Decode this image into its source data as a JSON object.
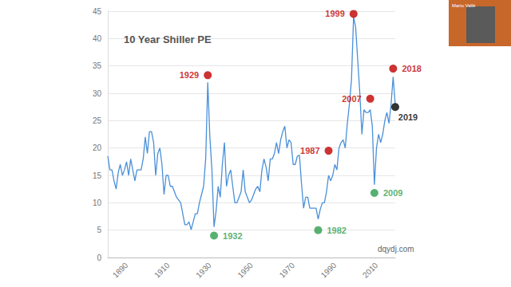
{
  "chart_data": {
    "type": "line",
    "title": "10 Year Shiller PE",
    "source": "dqydj.com",
    "color": "#4a90d9",
    "xlim": [
      1881,
      2019
    ],
    "xticks": [
      1890,
      1910,
      1930,
      1950,
      1970,
      1990,
      2010
    ],
    "ylim": [
      0,
      45
    ],
    "yticks": [
      0,
      5,
      10,
      15,
      20,
      25,
      30,
      35,
      40,
      45
    ],
    "grid": true,
    "x": [
      1881,
      1882,
      1883,
      1884,
      1885,
      1886,
      1887,
      1888,
      1889,
      1890,
      1891,
      1892,
      1893,
      1894,
      1895,
      1896,
      1897,
      1898,
      1899,
      1900,
      1901,
      1902,
      1903,
      1904,
      1905,
      1906,
      1907,
      1908,
      1909,
      1910,
      1911,
      1912,
      1913,
      1914,
      1915,
      1916,
      1917,
      1918,
      1919,
      1920,
      1921,
      1922,
      1923,
      1924,
      1925,
      1926,
      1927,
      1928,
      1929,
      1930,
      1931,
      1932,
      1933,
      1934,
      1935,
      1936,
      1937,
      1938,
      1939,
      1940,
      1941,
      1942,
      1943,
      1944,
      1945,
      1946,
      1947,
      1948,
      1949,
      1950,
      1951,
      1952,
      1953,
      1954,
      1955,
      1956,
      1957,
      1958,
      1959,
      1960,
      1961,
      1962,
      1963,
      1964,
      1965,
      1966,
      1967,
      1968,
      1969,
      1970,
      1971,
      1972,
      1973,
      1974,
      1975,
      1976,
      1977,
      1978,
      1979,
      1980,
      1981,
      1982,
      1983,
      1984,
      1985,
      1986,
      1987,
      1988,
      1989,
      1990,
      1991,
      1992,
      1993,
      1994,
      1995,
      1996,
      1997,
      1998,
      1999,
      2000,
      2001,
      2002,
      2003,
      2004,
      2005,
      2006,
      2007,
      2008,
      2009,
      2010,
      2011,
      2012,
      2013,
      2014,
      2015,
      2016,
      2017,
      2018,
      2019
    ],
    "values": [
      18.5,
      16,
      16,
      14,
      12.5,
      15.5,
      17,
      15,
      16,
      17.5,
      15,
      18,
      16,
      14,
      16,
      16,
      16,
      18,
      22,
      19,
      23,
      23,
      21,
      15,
      19,
      20,
      17,
      11.5,
      15,
      15,
      13,
      13,
      12,
      11,
      10.5,
      10,
      8,
      6,
      6,
      6.5,
      5.1,
      6.5,
      8,
      8,
      10,
      11.5,
      13,
      18,
      32,
      22,
      16,
      5.6,
      8.5,
      13,
      11,
      17,
      21,
      13,
      15,
      16,
      13,
      10,
      10,
      11,
      12,
      16,
      12,
      11,
      10,
      10.5,
      11.5,
      12.5,
      13,
      12,
      16,
      18,
      16.5,
      14,
      18,
      18,
      19,
      21,
      19,
      21.5,
      23,
      24,
      20,
      21.5,
      21,
      17,
      17,
      18.5,
      18.7,
      13.5,
      9,
      11,
      11,
      9,
      9,
      9,
      9,
      7,
      8.8,
      10,
      10,
      12,
      15,
      14,
      15,
      17,
      16,
      20,
      21,
      21.5,
      20,
      24.5,
      28,
      32.5,
      44,
      42,
      36,
      30,
      22.5,
      27,
      26.5,
      26.5,
      27,
      24,
      13.3,
      20,
      22.5,
      21,
      22.5,
      25,
      26.5,
      24.5,
      28,
      33,
      28
    ],
    "annotations": [
      {
        "label": "1929",
        "x": 1929,
        "y": 33.3,
        "color": "#c00000"
      },
      {
        "label": "1932",
        "x": 1932,
        "y": 4,
        "color": "#2e9e4f"
      },
      {
        "label": "1987",
        "x": 1987,
        "y": 19.5,
        "color": "#c00000"
      },
      {
        "label": "1982",
        "x": 1982,
        "y": 5,
        "color": "#2e9e4f"
      },
      {
        "label": "1999",
        "x": 1999,
        "y": 44.5,
        "color": "#c00000"
      },
      {
        "label": "2007",
        "x": 2007,
        "y": 29,
        "color": "#c00000"
      },
      {
        "label": "2009",
        "x": 2009,
        "y": 11.8,
        "color": "#2e9e4f"
      },
      {
        "label": "2018",
        "x": 2018,
        "y": 34.5,
        "color": "#c00000"
      },
      {
        "label": "2019",
        "x": 2019,
        "y": 27.5,
        "color": "#000000"
      }
    ]
  },
  "overlay": {
    "label": "Mario Vallé"
  }
}
